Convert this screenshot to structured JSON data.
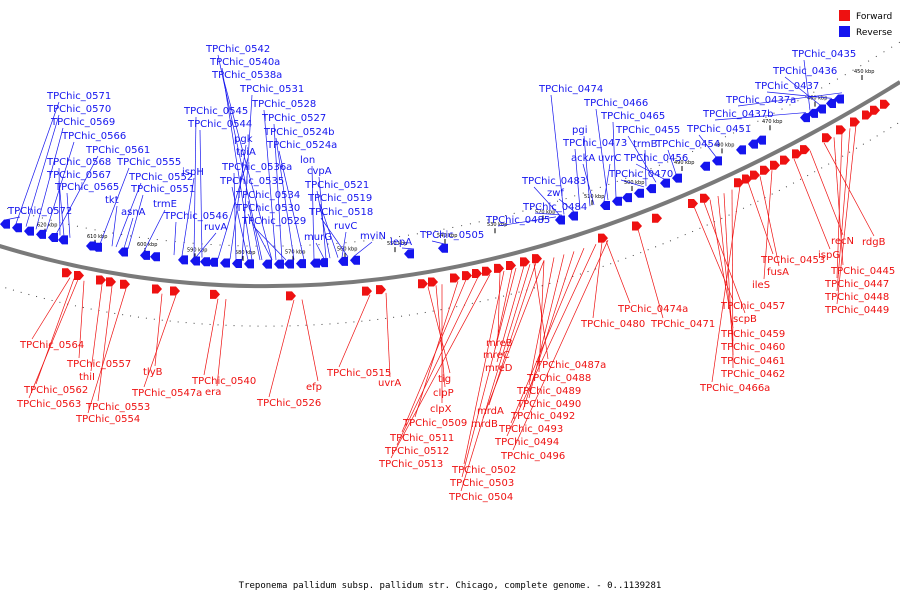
{
  "legend": {
    "forward": "Forward",
    "reverse": "Reverse"
  },
  "colors": {
    "forward": "#ee1111",
    "reverse": "#1515ee",
    "backbone": "#6e6e6e"
  },
  "caption": "Treponema pallidum subsp. pallidum str. Chicago, complete genome. - 0..1139281",
  "ticks": [
    "620 kbp",
    "610 kbp",
    "600 kbp",
    "590 kbp",
    "580 kbp",
    "570 kbp",
    "560 kbp",
    "550 kbp",
    "540 kbp",
    "530 kbp",
    "520 kbp",
    "510 kbp",
    "500 kbp",
    "490 kbp",
    "480 kbp",
    "470 kbp",
    "460 kbp",
    "450 kbp"
  ],
  "reverse_labels": [
    "TPChic_0542",
    "TPChic_0540a",
    "TPChic_0538a",
    "TPChic_0531",
    "TPChic_0545",
    "TPChic_0528",
    "TPChic_0544",
    "TPChic_0527",
    "pgk",
    "TPChic_0524b",
    "tpiA",
    "TPChic_0524a",
    "lon",
    "TPChic_0536a",
    "cvpA",
    "TPChic_0535",
    "TPChic_0521",
    "TPChic_0534",
    "ispH",
    "TPChic_0519",
    "TPChic_0530",
    "TPChic_0518",
    "TPChic_0546",
    "TPChic_0529",
    "ruvA",
    "ruvC",
    "murG",
    "mviN",
    "TPChic_0571",
    "TPChic_0570",
    "TPChic_0569",
    "TPChic_0566",
    "TPChic_0561",
    "TPChic_0568",
    "TPChic_0555",
    "TPChic_0567",
    "TPChic_0552",
    "TPChic_0565",
    "TPChic_0551",
    "tkt",
    "trmE",
    "TPChic_0572",
    "asnA",
    "lepA",
    "TPChic_0505",
    "TPChic_0474",
    "TPChic_0466",
    "pgi",
    "TPChic_0465",
    "TPChic_0473",
    "trmB",
    "TPChic_0455",
    "ackA",
    "uvrC",
    "TPChic_0456",
    "TPChic_0470",
    "TPChic_0454",
    "TPChic_0483",
    "zwf",
    "TPChic_0484",
    "TPChic_0485",
    "TPChic_0451",
    "TPChic_0435",
    "TPChic_0436",
    "TPChic_0437",
    "TPChic_0437a",
    "TPChic_0437b"
  ],
  "forward_labels": [
    "TPChic_0564",
    "TPChic_0557",
    "thiI",
    "TPChic_0562",
    "TPChic_0563",
    "TPChic_0553",
    "TPChic_0554",
    "tlyB",
    "TPChic_0547a",
    "TPChic_0540",
    "era",
    "TPChic_0526",
    "efp",
    "TPChic_0515",
    "uvrA",
    "tig",
    "clpP",
    "clpX",
    "TPChic_0509",
    "TPChic_0511",
    "TPChic_0512",
    "TPChic_0513",
    "mreB",
    "mreC",
    "mreD",
    "mrdA",
    "mrdB",
    "TPChic_0502",
    "TPChic_0503",
    "TPChic_0504",
    "TPChic_0487a",
    "TPChic_0488",
    "TPChic_0489",
    "TPChic_0490",
    "TPChic_0492",
    "TPChic_0493",
    "TPChic_0494",
    "TPChic_0496",
    "TPChic_0474a",
    "TPChic_0480",
    "TPChic_0471",
    "TPChic_0457",
    "scpB",
    "TPChic_0459",
    "TPChic_0460",
    "TPChic_0461",
    "TPChic_0462",
    "TPChic_0466a",
    "TPChic_0453",
    "fusA",
    "ileS",
    "ispG",
    "recN",
    "rdgB",
    "TPChic_0445",
    "TPChic_0447",
    "TPChic_0448",
    "TPChic_0449"
  ]
}
